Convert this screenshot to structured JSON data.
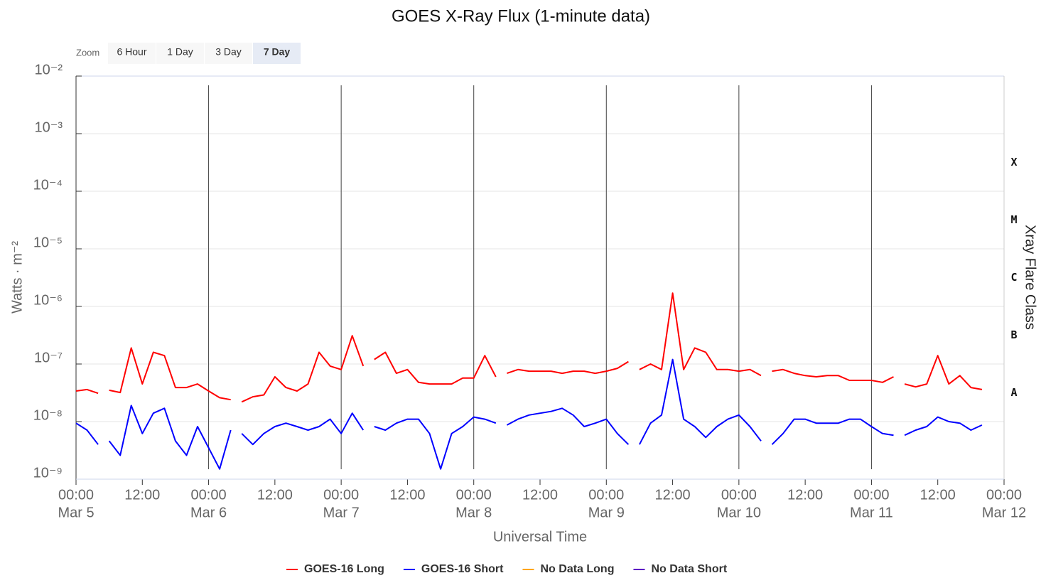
{
  "chart_data": {
    "type": "line",
    "title": "GOES X-Ray Flux (1-minute data)",
    "zoom": {
      "label": "Zoom",
      "buttons": [
        "6 Hour",
        "1 Day",
        "3 Day",
        "7 Day"
      ],
      "selected": 3
    },
    "ylabel": "Watts · m⁻²",
    "y2label": "Xray Flare Class",
    "xlabel": "Universal Time",
    "log_y": true,
    "grid": true,
    "legend": "bottom",
    "ylim": [
      1e-09,
      0.01
    ],
    "yticks": [
      {
        "value": 1e-09,
        "label": "10⁻⁹"
      },
      {
        "value": 1e-08,
        "label": "10⁻⁸"
      },
      {
        "value": 1e-07,
        "label": "10⁻⁷"
      },
      {
        "value": 1e-06,
        "label": "10⁻⁶"
      },
      {
        "value": 1e-05,
        "label": "10⁻⁵"
      },
      {
        "value": 0.0001,
        "label": "10⁻⁴"
      },
      {
        "value": 0.001,
        "label": "10⁻³"
      },
      {
        "value": 0.01,
        "label": "10⁻²"
      }
    ],
    "flare_classes": [
      {
        "value": 1e-08,
        "label": "A"
      },
      {
        "value": 1e-07,
        "label": "B"
      },
      {
        "value": 1e-06,
        "label": "C"
      },
      {
        "value": 1e-05,
        "label": "M"
      },
      {
        "value": 0.0001,
        "label": "X"
      }
    ],
    "xlim": [
      "Mar 5 00:00",
      "Mar 12 00:00"
    ],
    "xticks": [
      {
        "value": "Mar 5 00:00",
        "label": [
          "00:00",
          "Mar 5"
        ]
      },
      {
        "value": "Mar 5 12:00",
        "label": [
          "12:00"
        ]
      },
      {
        "value": "Mar 6 00:00",
        "label": [
          "00:00",
          "Mar 6"
        ]
      },
      {
        "value": "Mar 6 12:00",
        "label": [
          "12:00"
        ]
      },
      {
        "value": "Mar 7 00:00",
        "label": [
          "00:00",
          "Mar 7"
        ]
      },
      {
        "value": "Mar 7 12:00",
        "label": [
          "12:00"
        ]
      },
      {
        "value": "Mar 8 00:00",
        "label": [
          "00:00",
          "Mar 8"
        ]
      },
      {
        "value": "Mar 8 12:00",
        "label": [
          "12:00"
        ]
      },
      {
        "value": "Mar 9 00:00",
        "label": [
          "00:00",
          "Mar 9"
        ]
      },
      {
        "value": "Mar 9 12:00",
        "label": [
          "12:00"
        ]
      },
      {
        "value": "Mar 10 00:00",
        "label": [
          "00:00",
          "Mar 10"
        ]
      },
      {
        "value": "Mar 10 12:00",
        "label": [
          "12:00"
        ]
      },
      {
        "value": "Mar 11 00:00",
        "label": [
          "00:00",
          "Mar 11"
        ]
      },
      {
        "value": "Mar 11 12:00",
        "label": [
          "12:00"
        ]
      },
      {
        "value": "Mar 12 00:00",
        "label": [
          "00:00",
          "Mar 12"
        ]
      }
    ],
    "x": [
      "Mar 5 00:00",
      "Mar 5 02:00",
      "Mar 5 04:00",
      "Mar 5 05:00",
      "Mar 5 06:00",
      "Mar 5 08:00",
      "Mar 5 10:00",
      "Mar 5 12:00",
      "Mar 5 14:00",
      "Mar 5 16:00",
      "Mar 5 18:00",
      "Mar 5 20:00",
      "Mar 5 22:00",
      "Mar 6 00:00",
      "Mar 6 02:00",
      "Mar 6 04:00",
      "Mar 6 05:00",
      "Mar 6 06:00",
      "Mar 6 08:00",
      "Mar 6 10:00",
      "Mar 6 12:00",
      "Mar 6 14:00",
      "Mar 6 16:00",
      "Mar 6 18:00",
      "Mar 6 20:00",
      "Mar 6 22:00",
      "Mar 7 00:00",
      "Mar 7 02:00",
      "Mar 7 04:00",
      "Mar 7 05:00",
      "Mar 7 06:00",
      "Mar 7 08:00",
      "Mar 7 10:00",
      "Mar 7 12:00",
      "Mar 7 14:00",
      "Mar 7 16:00",
      "Mar 7 18:00",
      "Mar 7 20:00",
      "Mar 7 22:00",
      "Mar 8 00:00",
      "Mar 8 02:00",
      "Mar 8 04:00",
      "Mar 8 05:00",
      "Mar 8 06:00",
      "Mar 8 08:00",
      "Mar 8 10:00",
      "Mar 8 12:00",
      "Mar 8 14:00",
      "Mar 8 16:00",
      "Mar 8 18:00",
      "Mar 8 20:00",
      "Mar 8 22:00",
      "Mar 9 00:00",
      "Mar 9 02:00",
      "Mar 9 04:00",
      "Mar 9 05:00",
      "Mar 9 06:00",
      "Mar 9 08:00",
      "Mar 9 10:00",
      "Mar 9 12:00",
      "Mar 9 14:00",
      "Mar 9 16:00",
      "Mar 9 18:00",
      "Mar 9 20:00",
      "Mar 9 22:00",
      "Mar 10 00:00",
      "Mar 10 02:00",
      "Mar 10 04:00",
      "Mar 10 05:00",
      "Mar 10 06:00",
      "Mar 10 08:00",
      "Mar 10 10:00",
      "Mar 10 12:00",
      "Mar 10 14:00",
      "Mar 10 16:00",
      "Mar 10 18:00",
      "Mar 10 20:00",
      "Mar 10 22:00",
      "Mar 11 00:00",
      "Mar 11 02:00",
      "Mar 11 04:00",
      "Mar 11 05:00",
      "Mar 11 06:00",
      "Mar 11 08:00",
      "Mar 11 10:00",
      "Mar 11 12:00",
      "Mar 11 14:00",
      "Mar 11 16:00",
      "Mar 11 18:00",
      "Mar 11 20:00"
    ],
    "series": [
      {
        "name": "GOES-16 Long",
        "color": "#ff0000",
        "values": [
          3.4e-08,
          3.6e-08,
          3.1e-08,
          null,
          3.5e-08,
          3.2e-08,
          1.9e-07,
          4.5e-08,
          1.6e-07,
          1.4e-07,
          3.9e-08,
          3.9e-08,
          4.5e-08,
          3.4e-08,
          2.6e-08,
          2.4e-08,
          null,
          2.2e-08,
          2.7e-08,
          2.9e-08,
          6e-08,
          3.9e-08,
          3.4e-08,
          4.5e-08,
          1.6e-07,
          9.2e-08,
          8e-08,
          3.1e-07,
          9.2e-08,
          null,
          1.2e-07,
          1.6e-07,
          6.9e-08,
          8e-08,
          4.8e-08,
          4.5e-08,
          4.5e-08,
          4.5e-08,
          5.7e-08,
          5.7e-08,
          1.4e-07,
          6e-08,
          null,
          6.9e-08,
          8e-08,
          7.5e-08,
          7.5e-08,
          7.5e-08,
          6.9e-08,
          7.5e-08,
          7.5e-08,
          6.9e-08,
          7.5e-08,
          8.4e-08,
          1.1e-07,
          null,
          8e-08,
          1e-07,
          8e-08,
          1.7e-06,
          8e-08,
          1.9e-07,
          1.6e-07,
          8e-08,
          8e-08,
          7.5e-08,
          8e-08,
          6.3e-08,
          null,
          7.5e-08,
          8e-08,
          6.9e-08,
          6.3e-08,
          6e-08,
          6.3e-08,
          6.3e-08,
          5.2e-08,
          5.2e-08,
          5.2e-08,
          4.8e-08,
          6e-08,
          null,
          4.5e-08,
          4e-08,
          4.5e-08,
          1.4e-07,
          4.5e-08,
          6.3e-08,
          3.9e-08,
          3.6e-08
        ]
      },
      {
        "name": "GOES-16 Short",
        "color": "#0000ff",
        "values": [
          9.4e-09,
          7.1e-09,
          4e-09,
          null,
          4.6e-09,
          2.6e-09,
          1.9e-08,
          6.2e-09,
          1.4e-08,
          1.7e-08,
          4.6e-09,
          2.6e-09,
          8.2e-09,
          3.5e-09,
          1.5e-09,
          7.1e-09,
          null,
          6.2e-09,
          4e-09,
          6.2e-09,
          8.2e-09,
          9.4e-09,
          8.2e-09,
          7.1e-09,
          8.2e-09,
          1.1e-08,
          6.2e-09,
          1.4e-08,
          7.1e-09,
          null,
          8.2e-09,
          7.1e-09,
          9.4e-09,
          1.1e-08,
          1.1e-08,
          6.2e-09,
          1.5e-09,
          6.2e-09,
          8.2e-09,
          1.2e-08,
          1.1e-08,
          9.4e-09,
          null,
          8.7e-09,
          1.1e-08,
          1.3e-08,
          1.4e-08,
          1.5e-08,
          1.7e-08,
          1.3e-08,
          8.2e-09,
          9.4e-09,
          1.1e-08,
          6.2e-09,
          4e-09,
          null,
          4e-09,
          9.4e-09,
          1.3e-08,
          1.2e-07,
          1.1e-08,
          8.2e-09,
          5.3e-09,
          8.2e-09,
          1.1e-08,
          1.3e-08,
          8.2e-09,
          4.6e-09,
          null,
          4e-09,
          6.2e-09,
          1.1e-08,
          1.1e-08,
          9.4e-09,
          9.4e-09,
          9.4e-09,
          1.1e-08,
          1.1e-08,
          8.2e-09,
          6.2e-09,
          5.8e-09,
          null,
          5.8e-09,
          7.1e-09,
          8.2e-09,
          1.2e-08,
          1e-08,
          9.4e-09,
          7.1e-09,
          8.7e-09
        ]
      },
      {
        "name": "No Data Long",
        "color": "#ffa500",
        "values": [
          null,
          null,
          null,
          null,
          null,
          null,
          null,
          null,
          null,
          null,
          null,
          null,
          null,
          null,
          null,
          null,
          null,
          null,
          null,
          null,
          null,
          null,
          null,
          null,
          null,
          null,
          null,
          null,
          null,
          null,
          null,
          null,
          null,
          null,
          null,
          null,
          null,
          null,
          null,
          null,
          null,
          null,
          null,
          null,
          null,
          null,
          null,
          null,
          null,
          null,
          null,
          null,
          null,
          null,
          null,
          null,
          null,
          null,
          null,
          null,
          null,
          null,
          null,
          null,
          null,
          null,
          null,
          null,
          null,
          null,
          null,
          null,
          null,
          null,
          null,
          null,
          null,
          null,
          null,
          null,
          null,
          null,
          null,
          null,
          null,
          null,
          null,
          null,
          null,
          null
        ]
      },
      {
        "name": "No Data Short",
        "color": "#5b00c4",
        "values": [
          null,
          null,
          null,
          null,
          null,
          null,
          null,
          null,
          null,
          null,
          null,
          null,
          null,
          null,
          null,
          null,
          null,
          null,
          null,
          null,
          null,
          null,
          null,
          null,
          null,
          null,
          null,
          null,
          null,
          null,
          null,
          null,
          null,
          null,
          null,
          null,
          null,
          null,
          null,
          null,
          null,
          null,
          null,
          null,
          null,
          null,
          null,
          null,
          null,
          null,
          null,
          null,
          null,
          null,
          null,
          null,
          null,
          null,
          null,
          null,
          null,
          null,
          null,
          null,
          null,
          null,
          null,
          null,
          null,
          null,
          null,
          null,
          null,
          null,
          null,
          null,
          null,
          null,
          null,
          null,
          null,
          null,
          null,
          null,
          null,
          null,
          null,
          null,
          null,
          null
        ]
      }
    ]
  }
}
